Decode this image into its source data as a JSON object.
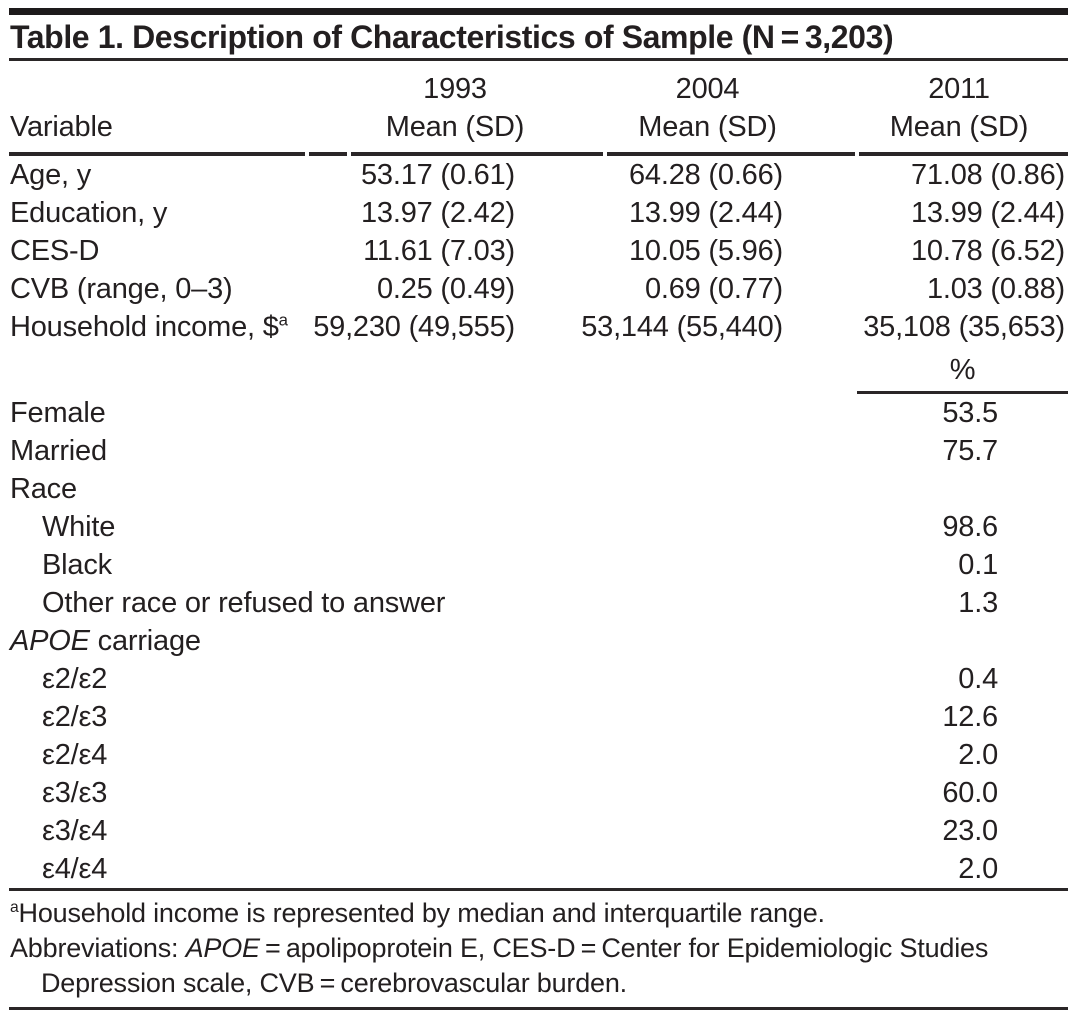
{
  "title": "Table 1. Description of Characteristics of Sample (N = 3,203)",
  "header": {
    "stub": "Variable",
    "columns": [
      {
        "year": "1993",
        "measure": "Mean (SD)"
      },
      {
        "year": "2004",
        "measure": "Mean (SD)"
      },
      {
        "year": "2011",
        "measure": "Mean (SD)"
      }
    ]
  },
  "mean_section": {
    "rows": [
      {
        "label": "Age, y",
        "values": [
          "53.17 (0.61)",
          "64.28 (0.66)",
          "71.08 (0.86)"
        ]
      },
      {
        "label": "Education, y",
        "values": [
          "13.97 (2.42)",
          "13.99 (2.44)",
          "13.99 (2.44)"
        ]
      },
      {
        "label": "CES-D",
        "values": [
          "11.61 (7.03)",
          "10.05 (5.96)",
          "10.78 (6.52)"
        ]
      },
      {
        "label": "CVB (range, 0–3)",
        "values": [
          "0.25 (0.49)",
          "0.69 (0.77)",
          "1.03 (0.88)"
        ]
      },
      {
        "label": "Household income, $",
        "label_sup": "a",
        "values": [
          "59,230 (49,555)",
          "53,144 (55,440)",
          "35,108 (35,653)"
        ]
      }
    ]
  },
  "percent_section": {
    "column_header": "%",
    "rows": [
      {
        "label": "Female",
        "value": "53.5",
        "indent": 0
      },
      {
        "label": "Married",
        "value": "75.7",
        "indent": 0
      },
      {
        "label": "Race",
        "value": "",
        "indent": 0
      },
      {
        "label": "White",
        "value": "98.6",
        "indent": 1
      },
      {
        "label": "Black",
        "value": "0.1",
        "indent": 1
      },
      {
        "label": "Other race or refused to answer",
        "value": "1.3",
        "indent": 1
      },
      {
        "label_italic": "APOE",
        "label": " carriage",
        "value": "",
        "indent": 0
      },
      {
        "label": "ε2/ε2",
        "value": "0.4",
        "indent": 1
      },
      {
        "label": "ε2/ε3",
        "value": "12.6",
        "indent": 1
      },
      {
        "label": "ε2/ε4",
        "value": "2.0",
        "indent": 1
      },
      {
        "label": "ε3/ε3",
        "value": "60.0",
        "indent": 1
      },
      {
        "label": "ε3/ε4",
        "value": "23.0",
        "indent": 1
      },
      {
        "label": "ε4/ε4",
        "value": "2.0",
        "indent": 1
      }
    ]
  },
  "footnotes": [
    {
      "hang": false,
      "parts": [
        {
          "sup": "a"
        },
        {
          "text": "Household income is represented by median and interquartile range."
        }
      ]
    },
    {
      "hang": true,
      "parts": [
        {
          "text": "Abbreviations: "
        },
        {
          "italic": "APOE"
        },
        {
          "text": " = apolipoprotein E, CES-D = Center for Epidemiologic Studies"
        },
        {
          "br": true
        },
        {
          "text": "Depression scale, CVB = cerebrovascular burden."
        }
      ]
    }
  ]
}
